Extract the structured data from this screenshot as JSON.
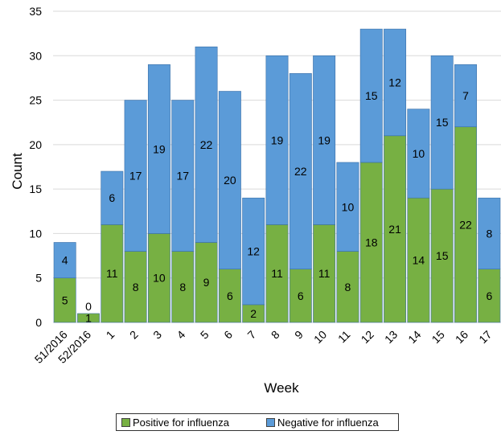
{
  "chart_data": {
    "type": "bar",
    "stacked": true,
    "categories": [
      "51/2016",
      "52/2016",
      "1",
      "2",
      "3",
      "4",
      "5",
      "6",
      "7",
      "8",
      "9",
      "10",
      "11",
      "12",
      "13",
      "14",
      "15",
      "16",
      "17"
    ],
    "series": [
      {
        "name": "Positive for influenza",
        "color": "#77b043",
        "values": [
          5,
          1,
          11,
          8,
          10,
          8,
          9,
          6,
          2,
          11,
          6,
          11,
          8,
          18,
          21,
          14,
          15,
          22,
          6
        ]
      },
      {
        "name": "Negative for influenza",
        "color": "#5b9bd8",
        "values": [
          4,
          0,
          6,
          17,
          19,
          17,
          22,
          20,
          12,
          19,
          22,
          19,
          10,
          15,
          12,
          10,
          15,
          7,
          8
        ]
      }
    ],
    "xlabel": "Week",
    "ylabel": "Count",
    "ylim": [
      0,
      35
    ],
    "yticks": [
      0,
      5,
      10,
      15,
      20,
      25,
      30,
      35
    ],
    "grid": true,
    "legend_position": "bottom"
  }
}
